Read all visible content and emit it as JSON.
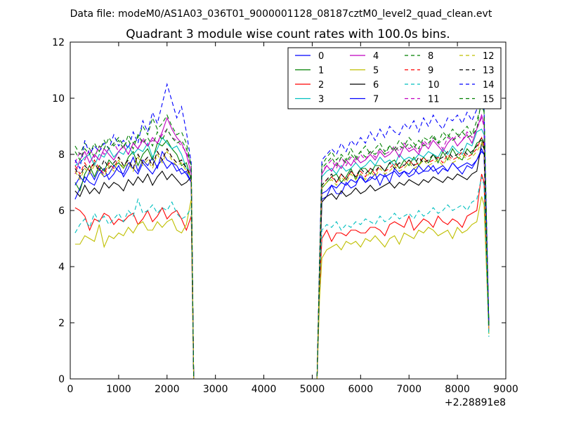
{
  "figure": {
    "suptitle": "Data file: modeM0/AS1A03_036T01_9000001128_08187cztM0_level2_quad_clean.evt"
  },
  "chart_data": {
    "type": "line",
    "title": "Quadrant 3 module wise count rates with 100.0s bins.",
    "xlabel": "",
    "ylabel": "",
    "x_offset_label": "+2.28891e8",
    "xlim": [
      0,
      9000
    ],
    "ylim": [
      0,
      12
    ],
    "xticks": [
      0,
      1000,
      2000,
      3000,
      4000,
      5000,
      6000,
      7000,
      8000,
      9000
    ],
    "yticks": [
      0,
      2,
      4,
      6,
      8,
      10,
      12
    ],
    "grid": false,
    "legend": {
      "placement": "top-right",
      "columns": 4
    },
    "x": [
      100,
      200,
      300,
      400,
      500,
      600,
      700,
      800,
      900,
      1000,
      1100,
      1200,
      1300,
      1400,
      1500,
      1600,
      1700,
      1800,
      1900,
      2000,
      2100,
      2200,
      2300,
      2400,
      2500,
      2550,
      3000,
      4000,
      5000,
      5100,
      5150,
      5200,
      5300,
      5400,
      5500,
      5600,
      5700,
      5800,
      5900,
      6000,
      6100,
      6200,
      6300,
      6400,
      6500,
      6600,
      6700,
      6800,
      6900,
      7000,
      7100,
      7200,
      7300,
      7400,
      7500,
      7600,
      7700,
      7800,
      7900,
      8000,
      8100,
      8200,
      8300,
      8400,
      8500,
      8550,
      8650
    ],
    "series": [
      {
        "name": "0",
        "color": "#0000ff",
        "dash": "solid",
        "values": [
          6.4,
          6.8,
          7.2,
          7.0,
          6.9,
          7.3,
          7.5,
          7.1,
          7.3,
          7.6,
          7.2,
          7.5,
          7.9,
          7.4,
          7.8,
          7.6,
          7.9,
          7.5,
          8.1,
          7.8,
          7.7,
          7.6,
          7.3,
          7.4,
          7.0,
          0,
          0,
          0,
          0,
          0,
          3.6,
          6.4,
          6.5,
          6.9,
          6.6,
          6.6,
          7.0,
          6.8,
          6.9,
          7.3,
          7.0,
          7.1,
          7.3,
          6.9,
          7.3,
          7.0,
          7.5,
          7.3,
          7.4,
          7.2,
          7.3,
          7.6,
          7.4,
          7.4,
          7.6,
          7.3,
          7.5,
          7.4,
          7.7,
          7.5,
          7.3,
          7.6,
          7.5,
          7.8,
          8.1,
          8.0,
          1.8
        ]
      },
      {
        "name": "1",
        "color": "#008000",
        "dash": "solid",
        "values": [
          7.0,
          6.7,
          7.3,
          7.6,
          7.2,
          7.6,
          7.4,
          7.8,
          7.6,
          7.7,
          7.5,
          7.9,
          8.1,
          7.6,
          8.0,
          8.2,
          7.8,
          8.4,
          8.3,
          8.5,
          8.2,
          8.0,
          7.6,
          7.7,
          7.1,
          0,
          0,
          0,
          0,
          0,
          3.7,
          6.8,
          7.0,
          7.2,
          7.3,
          7.0,
          7.2,
          7.5,
          7.1,
          7.5,
          7.5,
          7.3,
          7.6,
          7.6,
          7.4,
          7.7,
          7.8,
          7.5,
          7.8,
          7.6,
          7.9,
          7.6,
          7.9,
          7.7,
          8.0,
          7.7,
          8.1,
          7.8,
          8.2,
          7.9,
          7.8,
          8.2,
          8.0,
          8.4,
          8.5,
          8.3,
          1.8
        ]
      },
      {
        "name": "2",
        "color": "#ff0000",
        "dash": "solid",
        "values": [
          6.1,
          6.0,
          5.8,
          5.3,
          5.7,
          5.6,
          5.9,
          5.8,
          5.5,
          5.7,
          5.6,
          5.8,
          5.9,
          5.5,
          5.7,
          6.0,
          5.6,
          5.8,
          6.1,
          5.7,
          5.9,
          6.0,
          5.7,
          5.3,
          5.8,
          0,
          0,
          0,
          0,
          0,
          3.1,
          5.0,
          5.3,
          4.9,
          5.2,
          5.2,
          5.1,
          5.3,
          5.3,
          5.2,
          5.2,
          5.4,
          5.4,
          5.3,
          5.1,
          5.5,
          5.6,
          5.5,
          5.4,
          5.8,
          5.3,
          5.5,
          5.7,
          5.6,
          5.4,
          5.8,
          5.6,
          5.5,
          5.7,
          5.6,
          5.4,
          5.8,
          5.9,
          6.0,
          7.3,
          7.0,
          1.7
        ]
      },
      {
        "name": "3",
        "color": "#00bfbf",
        "dash": "solid",
        "values": [
          7.6,
          7.7,
          7.9,
          8.0,
          7.6,
          8.0,
          7.9,
          8.2,
          7.9,
          8.1,
          8.0,
          8.3,
          8.0,
          8.2,
          8.1,
          8.4,
          7.9,
          8.2,
          8.6,
          8.4,
          8.2,
          8.3,
          8.0,
          7.5,
          7.4,
          0,
          0,
          0,
          0,
          0,
          3.9,
          7.2,
          7.4,
          7.5,
          7.3,
          7.6,
          7.4,
          7.5,
          7.7,
          7.5,
          7.6,
          7.8,
          7.6,
          7.9,
          7.7,
          7.8,
          7.6,
          8.0,
          7.8,
          7.9,
          7.8,
          8.0,
          7.9,
          8.1,
          8.0,
          7.9,
          8.2,
          8.0,
          8.3,
          8.1,
          8.0,
          8.4,
          8.3,
          8.8,
          8.9,
          8.7,
          1.8
        ]
      },
      {
        "name": "4",
        "color": "#bf00bf",
        "dash": "solid",
        "values": [
          7.3,
          7.8,
          8.1,
          7.7,
          8.0,
          7.8,
          8.2,
          8.0,
          7.8,
          8.1,
          8.3,
          8.0,
          8.4,
          8.2,
          8.5,
          8.3,
          8.6,
          8.4,
          8.8,
          9.3,
          8.9,
          8.6,
          8.4,
          8.0,
          7.3,
          0,
          0,
          0,
          0,
          0,
          3.9,
          7.3,
          7.6,
          7.4,
          7.7,
          7.5,
          7.8,
          7.6,
          7.9,
          7.7,
          7.8,
          8.0,
          7.8,
          8.1,
          7.9,
          8.0,
          8.2,
          7.9,
          8.3,
          8.1,
          8.2,
          8.0,
          8.4,
          8.2,
          8.5,
          8.3,
          8.1,
          8.4,
          8.6,
          8.3,
          8.5,
          8.7,
          8.4,
          8.9,
          9.4,
          9.1,
          1.8
        ]
      },
      {
        "name": "5",
        "color": "#bfbf00",
        "dash": "solid",
        "values": [
          4.8,
          4.8,
          5.1,
          5.0,
          4.9,
          5.5,
          4.7,
          5.1,
          5.0,
          5.2,
          5.1,
          5.4,
          5.2,
          5.5,
          5.6,
          5.3,
          5.3,
          5.6,
          5.4,
          5.6,
          5.7,
          5.3,
          5.2,
          5.5,
          6.4,
          0,
          0,
          0,
          0,
          0,
          2.8,
          4.3,
          4.6,
          4.7,
          4.8,
          4.6,
          4.9,
          4.8,
          4.9,
          4.7,
          5.0,
          4.9,
          5.1,
          4.9,
          4.7,
          5.0,
          5.1,
          4.8,
          5.2,
          5.1,
          5.0,
          5.3,
          5.2,
          5.4,
          5.3,
          5.1,
          5.2,
          5.3,
          5.0,
          5.4,
          5.2,
          5.3,
          5.5,
          5.6,
          6.5,
          6.2,
          1.6
        ]
      },
      {
        "name": "6",
        "color": "#000000",
        "dash": "solid",
        "values": [
          6.7,
          6.5,
          6.9,
          6.6,
          6.8,
          6.6,
          7.0,
          6.8,
          7.0,
          6.9,
          6.7,
          7.1,
          6.9,
          7.2,
          7.0,
          7.3,
          6.9,
          7.2,
          7.4,
          7.1,
          7.3,
          7.1,
          6.9,
          7.0,
          7.2,
          0,
          0,
          0,
          0,
          0,
          3.5,
          6.3,
          6.5,
          6.6,
          6.4,
          6.7,
          6.5,
          6.6,
          6.8,
          6.6,
          6.7,
          6.9,
          6.7,
          6.8,
          6.9,
          7.0,
          6.8,
          7.0,
          6.9,
          7.1,
          7.0,
          6.9,
          7.1,
          7.0,
          7.2,
          7.1,
          7.0,
          7.2,
          7.1,
          7.3,
          7.2,
          7.1,
          7.3,
          7.4,
          8.4,
          8.2,
          1.9
        ]
      },
      {
        "name": "7",
        "color": "#0000ff",
        "dash": "solid",
        "values": [
          6.9,
          7.2,
          7.0,
          7.4,
          7.1,
          7.5,
          7.2,
          7.3,
          7.6,
          7.4,
          7.3,
          7.7,
          7.5,
          7.3,
          7.7,
          7.5,
          7.3,
          7.6,
          7.8,
          7.5,
          7.7,
          7.4,
          7.5,
          7.3,
          7.0,
          0,
          0,
          0,
          0,
          0,
          3.6,
          6.6,
          6.7,
          6.9,
          6.8,
          7.0,
          6.9,
          7.1,
          7.0,
          7.2,
          7.0,
          7.2,
          7.1,
          7.3,
          7.2,
          7.3,
          7.4,
          7.2,
          7.4,
          7.3,
          7.5,
          7.3,
          7.4,
          7.6,
          7.4,
          7.5,
          7.6,
          7.4,
          7.7,
          7.5,
          7.6,
          7.7,
          7.6,
          7.8,
          8.2,
          8.0,
          1.9
        ]
      },
      {
        "name": "8",
        "color": "#008000",
        "dash": "dashed",
        "values": [
          8.3,
          8.0,
          8.4,
          8.2,
          7.9,
          8.3,
          8.2,
          8.6,
          8.3,
          8.5,
          8.2,
          8.7,
          8.4,
          8.6,
          9.0,
          8.7,
          9.3,
          8.9,
          9.1,
          9.4,
          9.0,
          8.7,
          8.8,
          8.4,
          7.6,
          0,
          0,
          0,
          0,
          0,
          4.1,
          7.6,
          7.9,
          8.1,
          7.8,
          8.0,
          7.8,
          8.2,
          7.9,
          8.1,
          8.3,
          8.0,
          8.2,
          8.4,
          8.1,
          8.3,
          8.2,
          8.5,
          8.3,
          8.6,
          8.4,
          8.2,
          8.6,
          8.5,
          8.7,
          8.4,
          8.8,
          8.6,
          8.9,
          8.7,
          8.8,
          9.0,
          8.7,
          9.2,
          9.8,
          9.5,
          1.9
        ]
      },
      {
        "name": "9",
        "color": "#ff0000",
        "dash": "dashed",
        "values": [
          7.6,
          7.3,
          7.7,
          7.4,
          7.8,
          7.5,
          7.3,
          7.7,
          7.5,
          7.9,
          7.6,
          7.8,
          7.5,
          8.0,
          7.7,
          7.9,
          7.6,
          8.1,
          7.8,
          8.2,
          7.9,
          7.7,
          7.8,
          7.5,
          7.3,
          0,
          0,
          0,
          0,
          0,
          3.8,
          6.9,
          7.1,
          7.2,
          7.0,
          7.3,
          7.1,
          7.4,
          7.2,
          7.4,
          7.2,
          7.5,
          7.3,
          7.6,
          7.4,
          7.5,
          7.7,
          7.5,
          7.6,
          7.8,
          7.6,
          7.7,
          7.9,
          7.7,
          7.8,
          7.9,
          7.7,
          8.0,
          7.8,
          7.9,
          8.1,
          7.9,
          8.0,
          8.2,
          8.6,
          8.3,
          1.8
        ]
      },
      {
        "name": "10",
        "color": "#00bfbf",
        "dash": "dashed",
        "values": [
          5.2,
          5.5,
          5.7,
          5.4,
          5.9,
          5.6,
          5.8,
          5.5,
          5.7,
          5.9,
          5.6,
          6.0,
          5.8,
          6.4,
          5.9,
          6.0,
          6.2,
          5.9,
          6.1,
          6.0,
          6.3,
          5.9,
          5.7,
          5.8,
          6.1,
          0,
          0,
          0,
          0,
          0,
          3.4,
          5.3,
          5.5,
          5.4,
          5.6,
          5.3,
          5.5,
          5.4,
          5.6,
          5.5,
          5.7,
          5.6,
          5.5,
          5.8,
          5.6,
          5.7,
          5.9,
          5.7,
          5.8,
          5.9,
          5.7,
          6.0,
          5.8,
          5.9,
          6.1,
          5.9,
          6.0,
          6.2,
          6.0,
          6.1,
          6.2,
          6.0,
          6.3,
          6.4,
          7.2,
          6.9,
          1.5
        ]
      },
      {
        "name": "11",
        "color": "#bf00bf",
        "dash": "dashed",
        "values": [
          7.7,
          8.1,
          7.8,
          8.2,
          7.9,
          8.3,
          8.0,
          8.2,
          8.4,
          8.1,
          8.3,
          8.0,
          8.4,
          8.2,
          8.6,
          8.3,
          8.5,
          8.4,
          8.7,
          8.9,
          8.6,
          8.5,
          8.3,
          8.1,
          7.5,
          0,
          0,
          0,
          0,
          0,
          4.0,
          7.4,
          7.6,
          7.8,
          7.5,
          7.9,
          7.6,
          7.9,
          7.7,
          8.0,
          7.8,
          8.1,
          7.9,
          8.2,
          8.0,
          8.1,
          8.3,
          8.1,
          8.4,
          8.2,
          8.3,
          8.1,
          8.5,
          8.3,
          8.6,
          8.4,
          8.2,
          8.6,
          8.5,
          8.7,
          8.5,
          8.8,
          8.6,
          8.9,
          9.3,
          9.0,
          1.8
        ]
      },
      {
        "name": "12",
        "color": "#bfbf00",
        "dash": "dashed",
        "values": [
          7.4,
          7.1,
          7.5,
          7.3,
          7.6,
          7.4,
          7.2,
          7.6,
          7.4,
          7.8,
          7.5,
          7.7,
          7.4,
          7.9,
          7.6,
          7.8,
          7.5,
          8.0,
          7.7,
          8.1,
          7.8,
          7.6,
          7.7,
          7.4,
          7.2,
          0,
          0,
          0,
          0,
          0,
          3.7,
          6.8,
          7.0,
          7.1,
          6.9,
          7.2,
          7.0,
          7.3,
          7.1,
          7.3,
          7.1,
          7.4,
          7.2,
          7.5,
          7.3,
          7.4,
          7.6,
          7.4,
          7.5,
          7.7,
          7.5,
          7.6,
          7.8,
          7.6,
          7.7,
          7.8,
          7.6,
          7.9,
          7.7,
          7.8,
          8.0,
          7.8,
          7.9,
          8.1,
          8.4,
          8.2,
          1.8
        ]
      },
      {
        "name": "13",
        "color": "#000000",
        "dash": "dashed",
        "values": [
          7.5,
          7.2,
          7.6,
          7.4,
          7.7,
          7.4,
          7.8,
          7.5,
          7.7,
          7.9,
          7.6,
          7.8,
          7.5,
          8.0,
          7.7,
          7.9,
          7.6,
          8.1,
          7.8,
          8.2,
          7.9,
          7.7,
          7.8,
          7.5,
          7.2,
          0,
          0,
          0,
          0,
          0,
          3.7,
          6.9,
          7.1,
          7.3,
          7.0,
          7.3,
          7.1,
          7.4,
          7.2,
          7.5,
          7.3,
          7.5,
          7.4,
          7.6,
          7.4,
          7.7,
          7.5,
          7.7,
          7.6,
          7.8,
          7.6,
          7.9,
          7.7,
          7.8,
          8.0,
          7.8,
          7.9,
          8.1,
          7.9,
          8.0,
          8.2,
          8.0,
          8.1,
          8.3,
          8.6,
          8.4,
          1.9
        ]
      },
      {
        "name": "14",
        "color": "#0000ff",
        "dash": "dashed",
        "values": [
          7.8,
          7.5,
          8.5,
          8.0,
          8.3,
          8.1,
          8.4,
          8.2,
          8.7,
          8.3,
          8.5,
          8.2,
          8.8,
          8.4,
          9.2,
          8.8,
          9.5,
          9.1,
          9.8,
          10.5,
          9.9,
          9.3,
          9.7,
          8.8,
          7.7,
          0,
          0,
          0,
          0,
          0,
          4.2,
          7.8,
          8.0,
          8.2,
          8.0,
          8.4,
          8.1,
          8.5,
          8.3,
          8.6,
          8.4,
          8.8,
          8.5,
          8.9,
          8.6,
          9.0,
          8.8,
          8.7,
          9.1,
          8.9,
          9.2,
          8.8,
          9.3,
          9.0,
          9.4,
          9.1,
          8.9,
          9.3,
          9.2,
          9.4,
          9.1,
          9.5,
          9.2,
          9.6,
          9.9,
          9.7,
          1.9
        ]
      },
      {
        "name": "15",
        "color": "#008000",
        "dash": "dashed",
        "values": [
          8.1,
          7.8,
          8.2,
          8.0,
          8.4,
          8.1,
          8.5,
          8.2,
          8.4,
          8.6,
          8.3,
          8.5,
          8.2,
          8.7,
          8.4,
          8.6,
          8.3,
          8.8,
          8.5,
          8.9,
          8.6,
          8.4,
          8.5,
          8.2,
          7.6,
          0,
          0,
          0,
          0,
          0,
          4.0,
          7.5,
          7.7,
          7.9,
          7.6,
          7.9,
          7.7,
          8.0,
          7.8,
          8.1,
          7.9,
          8.1,
          8.0,
          8.2,
          8.0,
          8.3,
          8.1,
          8.3,
          8.2,
          8.4,
          8.2,
          8.5,
          8.3,
          8.4,
          8.6,
          8.4,
          8.5,
          8.7,
          8.5,
          8.6,
          8.8,
          8.6,
          8.7,
          8.9,
          10.0,
          9.6,
          1.9
        ]
      }
    ]
  }
}
